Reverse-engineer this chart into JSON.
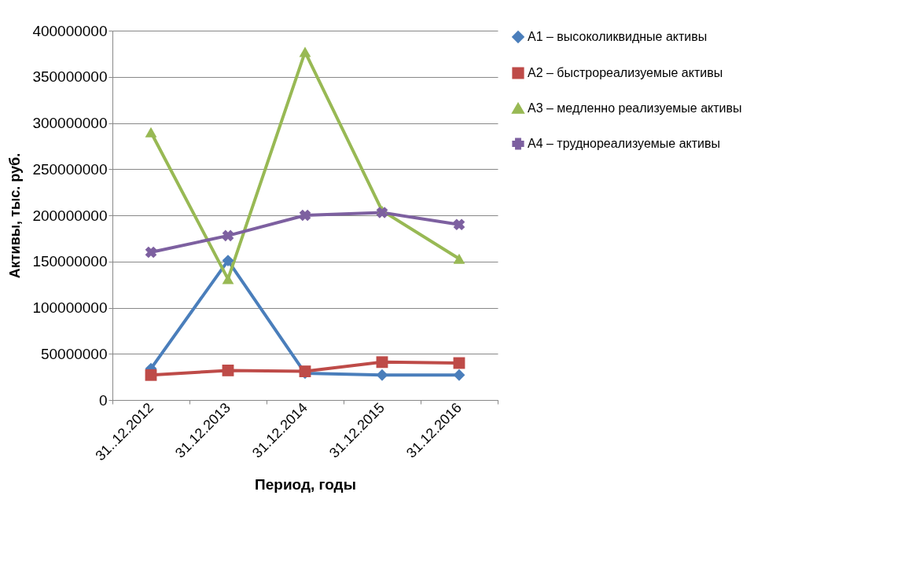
{
  "chart_data": {
    "type": "line",
    "xlabel": "Период, годы",
    "ylabel": "Активы, тыс. руб.",
    "categories": [
      "31..12.2012",
      "31.12.2013",
      "31.12.2014",
      "31.12.2015",
      "31.12.2016"
    ],
    "series": [
      {
        "name": "А1 – высоколиквидные активы",
        "color": "#4a7ebb",
        "marker": "diamond",
        "values": [
          34000000,
          151000000,
          29000000,
          27000000,
          27000000
        ]
      },
      {
        "name": "А2 – быстрореализуемые активы",
        "color": "#be4b48",
        "marker": "square",
        "values": [
          27000000,
          32000000,
          31000000,
          41000000,
          40000000
        ]
      },
      {
        "name": "А3 – медленно реализуемые активы",
        "color": "#98b954",
        "marker": "triangle",
        "values": [
          290000000,
          131000000,
          377000000,
          205000000,
          153000000
        ]
      },
      {
        "name": "А4 – труднореализуемые активы",
        "color": "#7d60a0",
        "marker": "cross",
        "values": [
          160000000,
          178000000,
          200000000,
          203000000,
          190000000
        ]
      }
    ],
    "ylim": [
      0,
      400000000
    ],
    "yticks": [
      0,
      50000000,
      100000000,
      150000000,
      200000000,
      250000000,
      300000000,
      350000000,
      400000000
    ],
    "grid": "y",
    "legend": "right"
  }
}
